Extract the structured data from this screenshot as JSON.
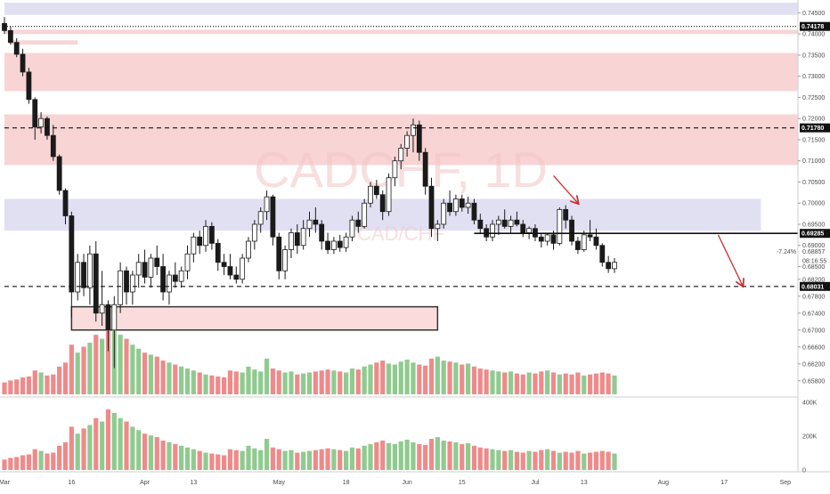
{
  "watermark": {
    "symbol": "CADCHF, 1D",
    "pair": "CAD/CHF"
  },
  "colors": {
    "up": "#ffffff",
    "down": "#1a1a1a",
    "wick": "#1a1a1a",
    "vol_up": "#8fcb8f",
    "vol_down": "#f08a8a",
    "supply_zone": "#f6c5c5",
    "demand_zone": "#d7d5ef",
    "arrow": "#cc2a2a"
  },
  "chart_data": {
    "type": "candlestick",
    "symbol": "CADCHF",
    "timeframe": "1D",
    "price_axis": {
      "min": 0.6548,
      "max": 0.7474,
      "ticks": [
        "0.74500",
        "0.74000",
        "0.73500",
        "0.73000",
        "0.72500",
        "0.72000",
        "0.71500",
        "0.71000",
        "0.70500",
        "0.70000",
        "0.69500",
        "0.69000",
        "0.68500",
        "0.68200",
        "0.67800",
        "0.67400",
        "0.67000",
        "0.66600",
        "0.66200",
        "0.65800"
      ]
    },
    "volume_axis": {
      "min": 0,
      "max": 400000,
      "ticks": [
        "400K",
        "200K",
        "0"
      ]
    },
    "x_axis": {
      "labels": [
        {
          "label": "Mar",
          "day": 0
        },
        {
          "label": "16",
          "day": 11
        },
        {
          "label": "Apr",
          "day": 23
        },
        {
          "label": "13",
          "day": 31
        },
        {
          "label": "May",
          "day": 45
        },
        {
          "label": "18",
          "day": 56
        },
        {
          "label": "Jun",
          "day": 66
        },
        {
          "label": "15",
          "day": 75
        },
        {
          "label": "Jul",
          "day": 87
        },
        {
          "label": "13",
          "day": 95
        },
        {
          "label": "Aug",
          "day": 108
        },
        {
          "label": "17",
          "day": 118
        },
        {
          "label": "Sep",
          "day": 128
        }
      ]
    },
    "last_day": 103,
    "candles": [
      {
        "d": 0,
        "o": 0.7425,
        "h": 0.744,
        "l": 0.74,
        "c": 0.7408
      },
      {
        "d": 1,
        "o": 0.7408,
        "h": 0.7418,
        "l": 0.7375,
        "c": 0.738
      },
      {
        "d": 2,
        "o": 0.738,
        "h": 0.739,
        "l": 0.7345,
        "c": 0.7352
      },
      {
        "d": 3,
        "o": 0.7352,
        "h": 0.7365,
        "l": 0.73,
        "c": 0.731
      },
      {
        "d": 4,
        "o": 0.731,
        "h": 0.732,
        "l": 0.7235,
        "c": 0.7245
      },
      {
        "d": 5,
        "o": 0.7245,
        "h": 0.725,
        "l": 0.715,
        "c": 0.718
      },
      {
        "d": 6,
        "o": 0.718,
        "h": 0.7215,
        "l": 0.7165,
        "c": 0.72
      },
      {
        "d": 7,
        "o": 0.72,
        "h": 0.7205,
        "l": 0.715,
        "c": 0.716
      },
      {
        "d": 8,
        "o": 0.716,
        "h": 0.7185,
        "l": 0.71,
        "c": 0.711
      },
      {
        "d": 9,
        "o": 0.711,
        "h": 0.7115,
        "l": 0.702,
        "c": 0.703
      },
      {
        "d": 10,
        "o": 0.703,
        "h": 0.7035,
        "l": 0.695,
        "c": 0.697
      },
      {
        "d": 11,
        "o": 0.697,
        "h": 0.698,
        "l": 0.673,
        "c": 0.679
      },
      {
        "d": 12,
        "o": 0.679,
        "h": 0.688,
        "l": 0.677,
        "c": 0.686
      },
      {
        "d": 13,
        "o": 0.686,
        "h": 0.688,
        "l": 0.678,
        "c": 0.68
      },
      {
        "d": 14,
        "o": 0.68,
        "h": 0.69,
        "l": 0.676,
        "c": 0.688
      },
      {
        "d": 15,
        "o": 0.688,
        "h": 0.691,
        "l": 0.672,
        "c": 0.674
      },
      {
        "d": 16,
        "o": 0.674,
        "h": 0.684,
        "l": 0.671,
        "c": 0.676
      },
      {
        "d": 17,
        "o": 0.676,
        "h": 0.677,
        "l": 0.665,
        "c": 0.67
      },
      {
        "d": 18,
        "o": 0.67,
        "h": 0.678,
        "l": 0.661,
        "c": 0.676
      },
      {
        "d": 19,
        "o": 0.676,
        "h": 0.686,
        "l": 0.674,
        "c": 0.684
      },
      {
        "d": 20,
        "o": 0.684,
        "h": 0.685,
        "l": 0.676,
        "c": 0.679
      },
      {
        "d": 21,
        "o": 0.679,
        "h": 0.684,
        "l": 0.676,
        "c": 0.683
      },
      {
        "d": 22,
        "o": 0.683,
        "h": 0.688,
        "l": 0.68,
        "c": 0.686
      },
      {
        "d": 23,
        "o": 0.686,
        "h": 0.689,
        "l": 0.681,
        "c": 0.6825
      },
      {
        "d": 24,
        "o": 0.6825,
        "h": 0.688,
        "l": 0.68,
        "c": 0.687
      },
      {
        "d": 25,
        "o": 0.687,
        "h": 0.69,
        "l": 0.683,
        "c": 0.685
      },
      {
        "d": 26,
        "o": 0.685,
        "h": 0.688,
        "l": 0.677,
        "c": 0.679
      },
      {
        "d": 27,
        "o": 0.679,
        "h": 0.684,
        "l": 0.676,
        "c": 0.683
      },
      {
        "d": 28,
        "o": 0.683,
        "h": 0.686,
        "l": 0.68,
        "c": 0.6815
      },
      {
        "d": 29,
        "o": 0.6815,
        "h": 0.685,
        "l": 0.68,
        "c": 0.684
      },
      {
        "d": 30,
        "o": 0.684,
        "h": 0.69,
        "l": 0.682,
        "c": 0.688
      },
      {
        "d": 31,
        "o": 0.688,
        "h": 0.693,
        "l": 0.686,
        "c": 0.692
      },
      {
        "d": 32,
        "o": 0.692,
        "h": 0.6935,
        "l": 0.688,
        "c": 0.69
      },
      {
        "d": 33,
        "o": 0.69,
        "h": 0.696,
        "l": 0.6885,
        "c": 0.6945
      },
      {
        "d": 34,
        "o": 0.6945,
        "h": 0.6955,
        "l": 0.689,
        "c": 0.6905
      },
      {
        "d": 35,
        "o": 0.6905,
        "h": 0.6915,
        "l": 0.684,
        "c": 0.686
      },
      {
        "d": 36,
        "o": 0.686,
        "h": 0.688,
        "l": 0.683,
        "c": 0.685
      },
      {
        "d": 37,
        "o": 0.685,
        "h": 0.688,
        "l": 0.682,
        "c": 0.683
      },
      {
        "d": 38,
        "o": 0.683,
        "h": 0.685,
        "l": 0.681,
        "c": 0.682
      },
      {
        "d": 39,
        "o": 0.682,
        "h": 0.688,
        "l": 0.681,
        "c": 0.687
      },
      {
        "d": 40,
        "o": 0.687,
        "h": 0.692,
        "l": 0.686,
        "c": 0.691
      },
      {
        "d": 41,
        "o": 0.691,
        "h": 0.696,
        "l": 0.689,
        "c": 0.695
      },
      {
        "d": 42,
        "o": 0.695,
        "h": 0.699,
        "l": 0.693,
        "c": 0.698
      },
      {
        "d": 43,
        "o": 0.698,
        "h": 0.703,
        "l": 0.696,
        "c": 0.7015
      },
      {
        "d": 44,
        "o": 0.7015,
        "h": 0.702,
        "l": 0.69,
        "c": 0.692
      },
      {
        "d": 45,
        "o": 0.692,
        "h": 0.693,
        "l": 0.682,
        "c": 0.684
      },
      {
        "d": 46,
        "o": 0.684,
        "h": 0.69,
        "l": 0.682,
        "c": 0.689
      },
      {
        "d": 47,
        "o": 0.689,
        "h": 0.694,
        "l": 0.687,
        "c": 0.693
      },
      {
        "d": 48,
        "o": 0.693,
        "h": 0.695,
        "l": 0.688,
        "c": 0.69
      },
      {
        "d": 49,
        "o": 0.69,
        "h": 0.696,
        "l": 0.689,
        "c": 0.694
      },
      {
        "d": 50,
        "o": 0.694,
        "h": 0.698,
        "l": 0.692,
        "c": 0.696
      },
      {
        "d": 51,
        "o": 0.696,
        "h": 0.699,
        "l": 0.693,
        "c": 0.695
      },
      {
        "d": 52,
        "o": 0.695,
        "h": 0.696,
        "l": 0.689,
        "c": 0.691
      },
      {
        "d": 53,
        "o": 0.691,
        "h": 0.693,
        "l": 0.688,
        "c": 0.689
      },
      {
        "d": 54,
        "o": 0.689,
        "h": 0.692,
        "l": 0.688,
        "c": 0.691
      },
      {
        "d": 55,
        "o": 0.691,
        "h": 0.6925,
        "l": 0.6885,
        "c": 0.6895
      },
      {
        "d": 56,
        "o": 0.6895,
        "h": 0.693,
        "l": 0.6885,
        "c": 0.692
      },
      {
        "d": 57,
        "o": 0.692,
        "h": 0.697,
        "l": 0.691,
        "c": 0.696
      },
      {
        "d": 58,
        "o": 0.696,
        "h": 0.698,
        "l": 0.693,
        "c": 0.6945
      },
      {
        "d": 59,
        "o": 0.6945,
        "h": 0.701,
        "l": 0.694,
        "c": 0.7
      },
      {
        "d": 60,
        "o": 0.7,
        "h": 0.705,
        "l": 0.699,
        "c": 0.704
      },
      {
        "d": 61,
        "o": 0.704,
        "h": 0.7055,
        "l": 0.701,
        "c": 0.702
      },
      {
        "d": 62,
        "o": 0.702,
        "h": 0.703,
        "l": 0.696,
        "c": 0.698
      },
      {
        "d": 63,
        "o": 0.698,
        "h": 0.707,
        "l": 0.697,
        "c": 0.706
      },
      {
        "d": 64,
        "o": 0.706,
        "h": 0.711,
        "l": 0.704,
        "c": 0.71
      },
      {
        "d": 65,
        "o": 0.71,
        "h": 0.714,
        "l": 0.708,
        "c": 0.713
      },
      {
        "d": 66,
        "o": 0.713,
        "h": 0.717,
        "l": 0.711,
        "c": 0.716
      },
      {
        "d": 67,
        "o": 0.716,
        "h": 0.72,
        "l": 0.712,
        "c": 0.7185
      },
      {
        "d": 68,
        "o": 0.7185,
        "h": 0.7195,
        "l": 0.71,
        "c": 0.712
      },
      {
        "d": 69,
        "o": 0.712,
        "h": 0.713,
        "l": 0.702,
        "c": 0.704
      },
      {
        "d": 70,
        "o": 0.704,
        "h": 0.706,
        "l": 0.692,
        "c": 0.694
      },
      {
        "d": 71,
        "o": 0.694,
        "h": 0.696,
        "l": 0.691,
        "c": 0.695
      },
      {
        "d": 72,
        "o": 0.695,
        "h": 0.701,
        "l": 0.694,
        "c": 0.7
      },
      {
        "d": 73,
        "o": 0.7,
        "h": 0.703,
        "l": 0.697,
        "c": 0.698
      },
      {
        "d": 74,
        "o": 0.698,
        "h": 0.702,
        "l": 0.697,
        "c": 0.701
      },
      {
        "d": 75,
        "o": 0.701,
        "h": 0.702,
        "l": 0.698,
        "c": 0.699
      },
      {
        "d": 76,
        "o": 0.699,
        "h": 0.7015,
        "l": 0.6975,
        "c": 0.7
      },
      {
        "d": 77,
        "o": 0.7,
        "h": 0.701,
        "l": 0.695,
        "c": 0.696
      },
      {
        "d": 78,
        "o": 0.696,
        "h": 0.6975,
        "l": 0.693,
        "c": 0.694
      },
      {
        "d": 79,
        "o": 0.694,
        "h": 0.695,
        "l": 0.691,
        "c": 0.692
      },
      {
        "d": 80,
        "o": 0.692,
        "h": 0.696,
        "l": 0.691,
        "c": 0.695
      },
      {
        "d": 81,
        "o": 0.695,
        "h": 0.697,
        "l": 0.6925,
        "c": 0.696
      },
      {
        "d": 82,
        "o": 0.696,
        "h": 0.6985,
        "l": 0.694,
        "c": 0.6945
      },
      {
        "d": 83,
        "o": 0.6945,
        "h": 0.697,
        "l": 0.693,
        "c": 0.696
      },
      {
        "d": 84,
        "o": 0.696,
        "h": 0.698,
        "l": 0.6945,
        "c": 0.695
      },
      {
        "d": 85,
        "o": 0.695,
        "h": 0.696,
        "l": 0.692,
        "c": 0.693
      },
      {
        "d": 86,
        "o": 0.693,
        "h": 0.6945,
        "l": 0.6915,
        "c": 0.694
      },
      {
        "d": 87,
        "o": 0.694,
        "h": 0.695,
        "l": 0.691,
        "c": 0.692
      },
      {
        "d": 88,
        "o": 0.692,
        "h": 0.693,
        "l": 0.6895,
        "c": 0.691
      },
      {
        "d": 89,
        "o": 0.691,
        "h": 0.693,
        "l": 0.69,
        "c": 0.6925
      },
      {
        "d": 90,
        "o": 0.6925,
        "h": 0.6935,
        "l": 0.689,
        "c": 0.6905
      },
      {
        "d": 91,
        "o": 0.6905,
        "h": 0.699,
        "l": 0.69,
        "c": 0.6985
      },
      {
        "d": 92,
        "o": 0.6985,
        "h": 0.6995,
        "l": 0.694,
        "c": 0.696
      },
      {
        "d": 93,
        "o": 0.696,
        "h": 0.697,
        "l": 0.69,
        "c": 0.691
      },
      {
        "d": 94,
        "o": 0.691,
        "h": 0.692,
        "l": 0.688,
        "c": 0.689
      },
      {
        "d": 95,
        "o": 0.689,
        "h": 0.6935,
        "l": 0.6885,
        "c": 0.6925
      },
      {
        "d": 96,
        "o": 0.6925,
        "h": 0.696,
        "l": 0.691,
        "c": 0.692
      },
      {
        "d": 97,
        "o": 0.692,
        "h": 0.694,
        "l": 0.689,
        "c": 0.69
      },
      {
        "d": 98,
        "o": 0.69,
        "h": 0.6905,
        "l": 0.685,
        "c": 0.686
      },
      {
        "d": 99,
        "o": 0.686,
        "h": 0.6875,
        "l": 0.6835,
        "c": 0.6845
      },
      {
        "d": 100,
        "o": 0.6845,
        "h": 0.687,
        "l": 0.6835,
        "c": 0.686
      }
    ],
    "volume": [
      60,
      70,
      75,
      85,
      90,
      120,
      110,
      95,
      100,
      140,
      160,
      250,
      210,
      240,
      260,
      300,
      280,
      350,
      330,
      300,
      280,
      250,
      230,
      210,
      200,
      190,
      170,
      160,
      150,
      140,
      130,
      120,
      110,
      100,
      95,
      90,
      85,
      120,
      115,
      110,
      140,
      125,
      115,
      180,
      130,
      120,
      110,
      115,
      100,
      105,
      110,
      115,
      120,
      125,
      120,
      115,
      110,
      130,
      125,
      140,
      150,
      160,
      170,
      155,
      150,
      165,
      175,
      160,
      150,
      145,
      180,
      190,
      170,
      165,
      160,
      150,
      155,
      140,
      130,
      125,
      120,
      115,
      110,
      115,
      105,
      100,
      110,
      105,
      115,
      120,
      110,
      100,
      105,
      100,
      110,
      95,
      100,
      105,
      110,
      105,
      95
    ],
    "zones": [
      {
        "name": "top-blue",
        "type": "demand",
        "from": 0.7445,
        "to": 0.7474,
        "d0": 0,
        "d1": 140
      },
      {
        "name": "supply-upper",
        "type": "supply",
        "from": 0.74,
        "to": 0.741,
        "d0": 0,
        "d1": 140
      },
      {
        "name": "supply-mid",
        "type": "supply",
        "from": 0.7265,
        "to": 0.7355,
        "d0": 0,
        "d1": 140
      },
      {
        "name": "supply-low",
        "type": "supply",
        "from": 0.709,
        "to": 0.721,
        "d0": 0,
        "d1": 140
      },
      {
        "name": "resistance-blue",
        "type": "demand",
        "from": 0.6935,
        "to": 0.701,
        "d0": 0,
        "d1": 124
      },
      {
        "name": "small-supply",
        "type": "supply",
        "from": 0.7375,
        "to": 0.7385,
        "d0": 1,
        "d1": 12
      }
    ],
    "boxes": [
      {
        "name": "demand-box",
        "from": 0.67,
        "to": 0.6755,
        "d0": 11,
        "d1": 71
      }
    ],
    "levels": [
      {
        "name": "level-top",
        "value": 0.74178,
        "label": "0.74178",
        "style": "dotted",
        "d0": 0,
        "d1": 140,
        "tag": "black"
      },
      {
        "name": "level-upper",
        "value": 0.7178,
        "label": "0.71780",
        "style": "dashed",
        "d0": 0,
        "d1": 140,
        "tag": "black"
      },
      {
        "name": "level-support",
        "value": 0.69285,
        "label": "0.69285",
        "style": "solid",
        "d0": 77,
        "d1": 140,
        "tag": "black"
      },
      {
        "name": "level-target",
        "value": 0.68031,
        "label": "0.68031",
        "style": "dashed",
        "d0": 0,
        "d1": 140,
        "tag": "black"
      }
    ],
    "price_readout": {
      "percent": "-7.24%",
      "price": "0.68857",
      "countdown": "08:16:55"
    },
    "arrows": [
      {
        "name": "arrow-1",
        "d0": 90,
        "p0": 0.7065,
        "d1": 94,
        "p1": 0.7
      },
      {
        "name": "arrow-2",
        "d0": 117,
        "p0": 0.6925,
        "d1": 121,
        "p1": 0.6805
      }
    ]
  }
}
